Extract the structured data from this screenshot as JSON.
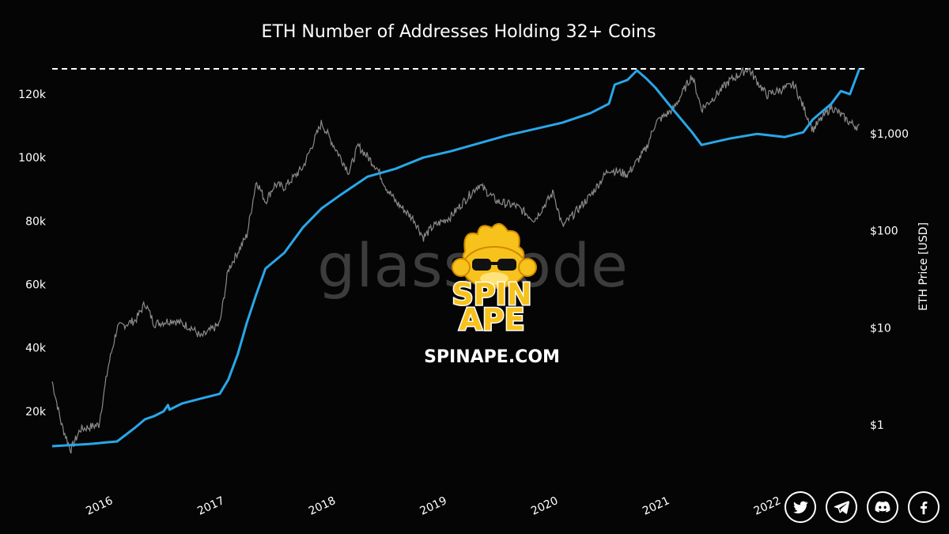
{
  "chart_data": {
    "type": "line",
    "title": "ETH Number of Addresses Holding 32+ Coins",
    "x_tick_labels": [
      "2016",
      "2017",
      "2018",
      "2019",
      "2020",
      "2021",
      "2022"
    ],
    "y_left": {
      "ticks": [
        20000,
        40000,
        60000,
        80000,
        100000,
        120000
      ],
      "tick_labels": [
        "20k",
        "40k",
        "60k",
        "80k",
        "100k",
        "120k"
      ],
      "range": [
        5000,
        128000
      ]
    },
    "y_right": {
      "label": "ETH Price [USD]",
      "scale": "log",
      "ticks": [
        1,
        10,
        100,
        1000
      ],
      "tick_labels": [
        "$1",
        "$10",
        "$100",
        "$1,000"
      ]
    },
    "reference_line": {
      "value": 128000,
      "style": "dashed",
      "color": "#ffffff"
    },
    "series": [
      {
        "axis": "left",
        "color": "#29a7e8",
        "points": [
          [
            "2015-08",
            9000
          ],
          [
            "2015-12",
            9700
          ],
          [
            "2016-03",
            10500
          ],
          [
            "2016-05",
            15000
          ],
          [
            "2016-06",
            17500
          ],
          [
            "2016-07",
            18500
          ],
          [
            "2016-08",
            20000
          ],
          [
            "2016-08-15",
            22000
          ],
          [
            "2016-08-20",
            20500
          ],
          [
            "2016-10",
            22500
          ],
          [
            "2016-12",
            24000
          ],
          [
            "2017-02",
            25500
          ],
          [
            "2017-03",
            30000
          ],
          [
            "2017-04",
            38000
          ],
          [
            "2017-05",
            48000
          ],
          [
            "2017-06",
            57000
          ],
          [
            "2017-07",
            65000
          ],
          [
            "2017-09",
            70000
          ],
          [
            "2017-11",
            78000
          ],
          [
            "2018-01",
            84000
          ],
          [
            "2018-03",
            88000
          ],
          [
            "2018-06",
            94000
          ],
          [
            "2018-09",
            96500
          ],
          [
            "2018-12",
            100000
          ],
          [
            "2019-03",
            102000
          ],
          [
            "2019-06",
            104500
          ],
          [
            "2019-09",
            107000
          ],
          [
            "2019-12",
            109000
          ],
          [
            "2020-03",
            111000
          ],
          [
            "2020-06",
            114000
          ],
          [
            "2020-08",
            117000
          ],
          [
            "2020-08-20",
            123000
          ],
          [
            "2020-10",
            124500
          ],
          [
            "2020-11",
            127500
          ],
          [
            "2020-12",
            125000
          ],
          [
            "2021-01",
            122000
          ],
          [
            "2021-03",
            115000
          ],
          [
            "2021-05",
            108000
          ],
          [
            "2021-06",
            104000
          ],
          [
            "2021-09",
            106000
          ],
          [
            "2021-12",
            107500
          ],
          [
            "2022-03",
            106500
          ],
          [
            "2022-05",
            108000
          ],
          [
            "2022-06",
            112000
          ],
          [
            "2022-08",
            117000
          ],
          [
            "2022-09",
            121000
          ],
          [
            "2022-10",
            120000
          ],
          [
            "2022-11",
            128000
          ]
        ]
      },
      {
        "axis": "right",
        "color": "#8a8a8a",
        "points": [
          [
            "2015-08",
            2.8
          ],
          [
            "2015-09",
            1.0
          ],
          [
            "2015-10",
            0.55
          ],
          [
            "2015-11",
            0.9
          ],
          [
            "2016-01",
            1.0
          ],
          [
            "2016-02",
            4.0
          ],
          [
            "2016-03",
            10.0
          ],
          [
            "2016-05",
            12.0
          ],
          [
            "2016-06",
            18.0
          ],
          [
            "2016-07",
            11.0
          ],
          [
            "2016-09",
            12.0
          ],
          [
            "2016-11",
            10.0
          ],
          [
            "2016-12",
            8.0
          ],
          [
            "2017-02",
            11.0
          ],
          [
            "2017-03",
            40.0
          ],
          [
            "2017-05",
            90.0
          ],
          [
            "2017-06",
            330.0
          ],
          [
            "2017-07",
            200.0
          ],
          [
            "2017-08",
            300.0
          ],
          [
            "2017-09",
            280.0
          ],
          [
            "2017-11",
            450.0
          ],
          [
            "2018-01",
            1300.0
          ],
          [
            "2018-02",
            850.0
          ],
          [
            "2018-04",
            400.0
          ],
          [
            "2018-05",
            750.0
          ],
          [
            "2018-07",
            450.0
          ],
          [
            "2018-08",
            280.0
          ],
          [
            "2018-09",
            200.0
          ],
          [
            "2018-11",
            130.0
          ],
          [
            "2018-12",
            85.0
          ],
          [
            "2019-01",
            110.0
          ],
          [
            "2019-03",
            140.0
          ],
          [
            "2019-06",
            300.0
          ],
          [
            "2019-08",
            200.0
          ],
          [
            "2019-10",
            180.0
          ],
          [
            "2019-12",
            130.0
          ],
          [
            "2020-02",
            250.0
          ],
          [
            "2020-03",
            110.0
          ],
          [
            "2020-06",
            230.0
          ],
          [
            "2020-08",
            430.0
          ],
          [
            "2020-10",
            380.0
          ],
          [
            "2020-12",
            700.0
          ],
          [
            "2021-01",
            1300.0
          ],
          [
            "2021-03",
            1800.0
          ],
          [
            "2021-05",
            4000.0
          ],
          [
            "2021-06",
            1800.0
          ],
          [
            "2021-07",
            2200.0
          ],
          [
            "2021-09",
            3500.0
          ],
          [
            "2021-11",
            4700.0
          ],
          [
            "2022-01",
            2500.0
          ],
          [
            "2022-04",
            3200.0
          ],
          [
            "2022-06",
            1100.0
          ],
          [
            "2022-08",
            1900.0
          ],
          [
            "2022-10",
            1300.0
          ],
          [
            "2022-11",
            1150.0
          ]
        ]
      }
    ]
  },
  "watermark": {
    "text": "glassnode"
  },
  "brand": {
    "line1": "SPIN",
    "line2": "APE",
    "site": "SPINAPE.COM",
    "accent": "#f7c21c"
  },
  "socials": [
    {
      "icon": "twitter-icon"
    },
    {
      "icon": "telegram-icon"
    },
    {
      "icon": "discord-icon"
    },
    {
      "icon": "facebook-icon"
    }
  ]
}
